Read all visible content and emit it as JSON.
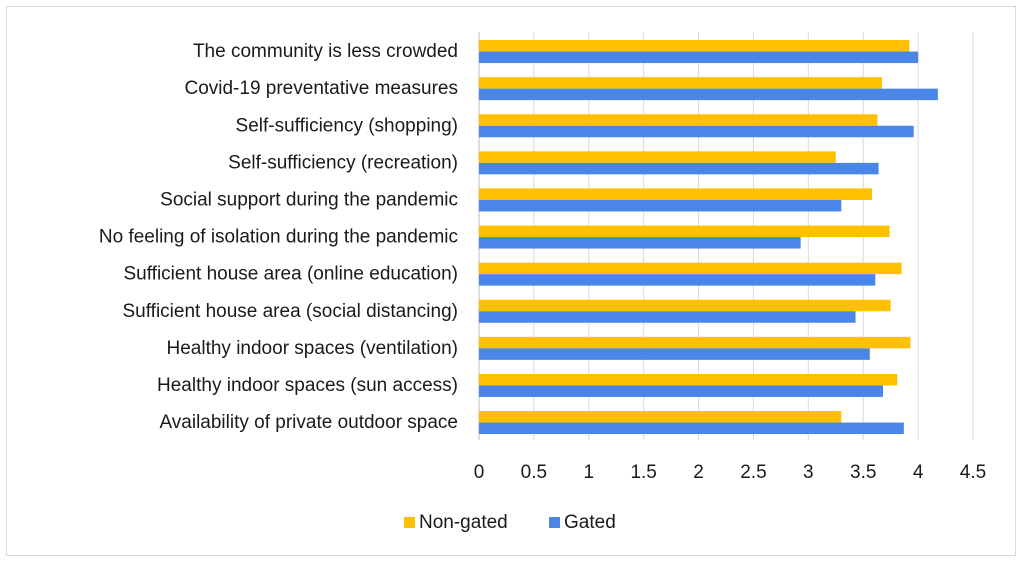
{
  "chart_data": {
    "type": "bar",
    "orientation": "horizontal",
    "categories": [
      "The community is less crowded",
      "Covid-19 preventative measures",
      "Self-sufficiency (shopping)",
      "Self-sufficiency (recreation)",
      "Social support during the pandemic",
      "No feeling of isolation during the pandemic",
      "Sufficient house area (online education)",
      "Sufficient house area (social distancing)",
      "Healthy indoor spaces (ventilation)",
      "Healthy indoor spaces (sun access)",
      "Availability of private outdoor space"
    ],
    "series": [
      {
        "name": "Non-gated",
        "color": "#FFC000",
        "values": [
          3.92,
          3.67,
          3.63,
          3.25,
          3.58,
          3.74,
          3.85,
          3.75,
          3.93,
          3.81,
          3.3
        ]
      },
      {
        "name": "Gated",
        "color": "#4A86E8",
        "values": [
          4.0,
          4.18,
          3.96,
          3.64,
          3.3,
          2.93,
          3.61,
          3.43,
          3.56,
          3.68,
          3.87
        ]
      }
    ],
    "xticks": [
      "0",
      "0.5",
      "1",
      "1.5",
      "2",
      "2.5",
      "3",
      "3.5",
      "4",
      "4.5"
    ],
    "xlim": [
      0,
      4.5
    ],
    "grid": "vertical",
    "legend_position": "bottom"
  }
}
